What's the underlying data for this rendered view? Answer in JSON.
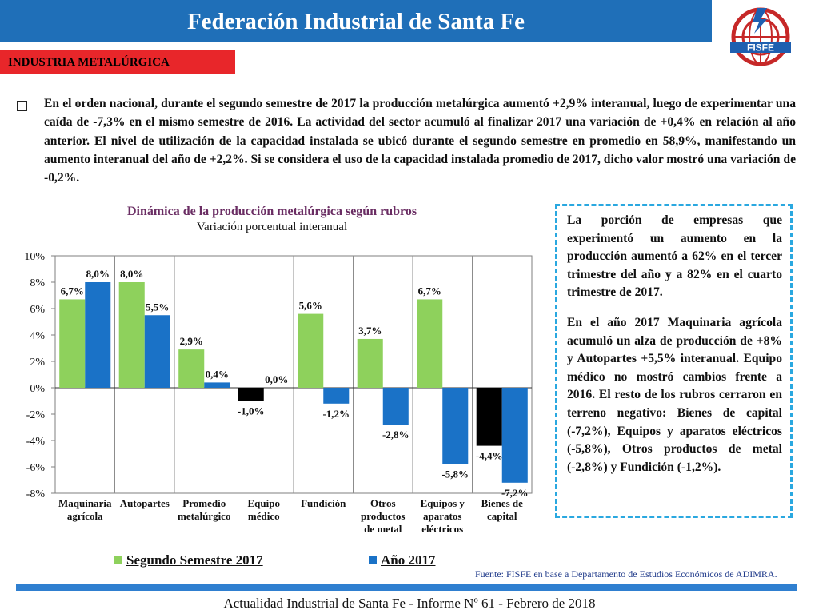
{
  "header": {
    "title": "Federación Industrial de Santa Fe"
  },
  "logo": {
    "text": "FISFE"
  },
  "section": {
    "label": "INDUSTRIA METALÚRGICA"
  },
  "intro": {
    "text": "En el orden nacional, durante el segundo semestre de 2017 la producción metalúrgica aumentó +2,9% interanual, luego de experimentar una caída de -7,3% en el mismo semestre de 2016. La actividad del sector acumuló al finalizar 2017 una variación de +0,4% en relación al año anterior. El nivel de utilización de la capacidad instalada se ubicó durante el segundo semestre en promedio en 58,9%, manifestando un aumento interanual del año de +2,2%. Si se considera el uso de la capacidad instalada promedio de 2017, dicho valor mostró una variación de -0,2%."
  },
  "chart_data": {
    "type": "bar",
    "title": "Dinámica de la producción metalúrgica según rubros",
    "subtitle": "Variación porcentual interanual",
    "categories": [
      [
        "Maquinaria",
        "agrícola"
      ],
      [
        "Autopartes"
      ],
      [
        "Promedio",
        "metalúrgico"
      ],
      [
        "Equipo",
        "médico"
      ],
      [
        "Fundición"
      ],
      [
        "Otros",
        "productos",
        "de metal"
      ],
      [
        "Equipos y",
        "aparatos",
        "eléctricos"
      ],
      [
        "Bienes de",
        "capital"
      ]
    ],
    "series": [
      {
        "name": "Segundo Semestre 2017",
        "color": "#8ed15c",
        "values": [
          6.7,
          8.0,
          2.9,
          -1.0,
          5.6,
          3.7,
          6.7,
          -4.4
        ],
        "labels": [
          "6,7%",
          "8,0%",
          "2,9%",
          "-1,0%",
          "5,6%",
          "3,7%",
          "6,7%",
          "-4,4%"
        ]
      },
      {
        "name": "Año 2017",
        "color": "#1a72c7",
        "values": [
          8.0,
          5.5,
          0.4,
          0.0,
          -1.2,
          -2.8,
          -5.8,
          -7.2
        ],
        "labels": [
          "8,0%",
          "5,5%",
          "0,4%",
          "0,0%",
          "-1,2%",
          "-2,8%",
          "-5,8%",
          "-7,2%"
        ]
      }
    ],
    "highlight_color": "#000000",
    "highlight_index": 3,
    "highlight_index2": 7,
    "y_ticks": [
      "10%",
      "8%",
      "6%",
      "4%",
      "2%",
      "0%",
      "-2%",
      "-4%",
      "-6%",
      "-8%"
    ],
    "ylim": [
      -8,
      10
    ],
    "grid": "vertical separators",
    "legend_position": "bottom"
  },
  "side_note": {
    "p1": "La porción de empresas que experimentó un aumento en la producción aumentó a 62% en el tercer trimestre del año y a 82% en el cuarto trimestre de 2017.",
    "p2": "En el año 2017 Maquinaria agrícola acumuló un alza de producción de +8% y Autopartes +5,5% interanual. Equipo médico no mostró cambios frente a 2016. El resto de los rubros cerraron en terreno negativo: Bienes de capital (-7,2%), Equipos y aparatos eléctricos (-5,8%), Otros productos de metal (-2,8%) y Fundición (-1,2%)."
  },
  "source": "Fuente: FISFE en base a Departamento de Estudios Económicos de ADIMRA.",
  "footer": "Actualidad Industrial de Santa Fe - Informe Nº 61 - Febrero de 2018"
}
